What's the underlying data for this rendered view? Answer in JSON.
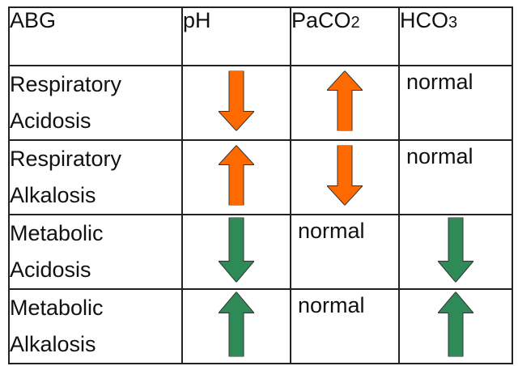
{
  "table": {
    "headers": {
      "abg": "ABG",
      "ph": "pH",
      "paco2": {
        "base": "PaCO",
        "sub": "2"
      },
      "hco3": {
        "base": "HCO",
        "sub": "3"
      }
    },
    "rows": [
      {
        "line1": "Respiratory",
        "line2": "Acidosis",
        "ph": {
          "direction": "down",
          "color": "#ff6a00"
        },
        "paco2": {
          "direction": "up",
          "color": "#ff6a00"
        },
        "hco3": {
          "text": "normal"
        }
      },
      {
        "line1": "Respiratory",
        "line2": "Alkalosis",
        "ph": {
          "direction": "up",
          "color": "#ff6a00"
        },
        "paco2": {
          "direction": "down",
          "color": "#ff6a00"
        },
        "hco3": {
          "text": "normal"
        }
      },
      {
        "line1": "Metabolic",
        "line2": "Acidosis",
        "ph": {
          "direction": "down",
          "color": "#2e8b57"
        },
        "paco2": {
          "text": "normal"
        },
        "hco3": {
          "direction": "down",
          "color": "#2e8b57"
        }
      },
      {
        "line1": "Metabolic",
        "line2": "Alkalosis",
        "ph": {
          "direction": "up",
          "color": "#2e8b57"
        },
        "paco2": {
          "text": "normal"
        },
        "hco3": {
          "direction": "up",
          "color": "#2e8b57"
        }
      }
    ]
  },
  "colors": {
    "increase_decrease_respiratory": "#ff6a00",
    "increase_decrease_metabolic": "#2e8b57"
  },
  "icons": {
    "up": "arrow-up-icon",
    "down": "arrow-down-icon"
  }
}
